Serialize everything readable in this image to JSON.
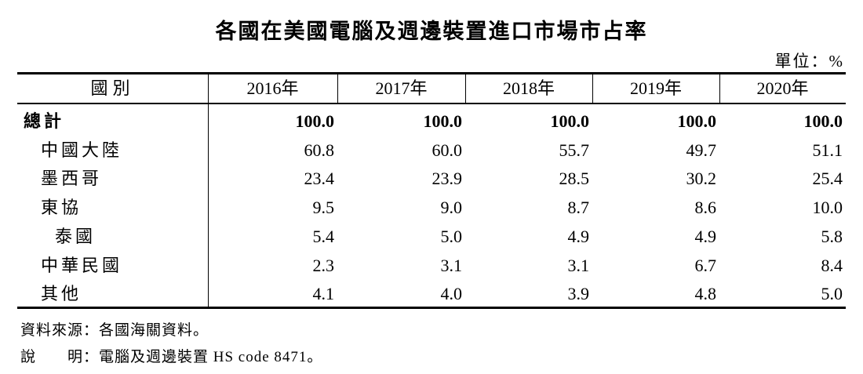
{
  "header": {
    "title": "各國在美國電腦及週邊裝置進口市場市占率",
    "unit": "單位：%"
  },
  "table": {
    "columns": [
      "國別",
      "2016年",
      "2017年",
      "2018年",
      "2019年",
      "2020年"
    ],
    "rows": [
      {
        "label": "總計",
        "values": [
          "100.0",
          "100.0",
          "100.0",
          "100.0",
          "100.0"
        ]
      },
      {
        "label": "中國大陸",
        "values": [
          "60.8",
          "60.0",
          "55.7",
          "49.7",
          "51.1"
        ]
      },
      {
        "label": "墨西哥",
        "values": [
          "23.4",
          "23.9",
          "28.5",
          "30.2",
          "25.4"
        ]
      },
      {
        "label": "東協",
        "values": [
          "9.5",
          "9.0",
          "8.7",
          "8.6",
          "10.0"
        ]
      },
      {
        "label": "泰國",
        "values": [
          "5.4",
          "5.0",
          "4.9",
          "4.9",
          "5.8"
        ]
      },
      {
        "label": "中華民國",
        "values": [
          "2.3",
          "3.1",
          "3.1",
          "6.7",
          "8.4"
        ]
      },
      {
        "label": "其他",
        "values": [
          "4.1",
          "4.0",
          "3.9",
          "4.8",
          "5.0"
        ]
      }
    ]
  },
  "notes": [
    "資料來源：各國海關資料。",
    "說　　明：電腦及週邊裝置 HS code 8471。"
  ]
}
